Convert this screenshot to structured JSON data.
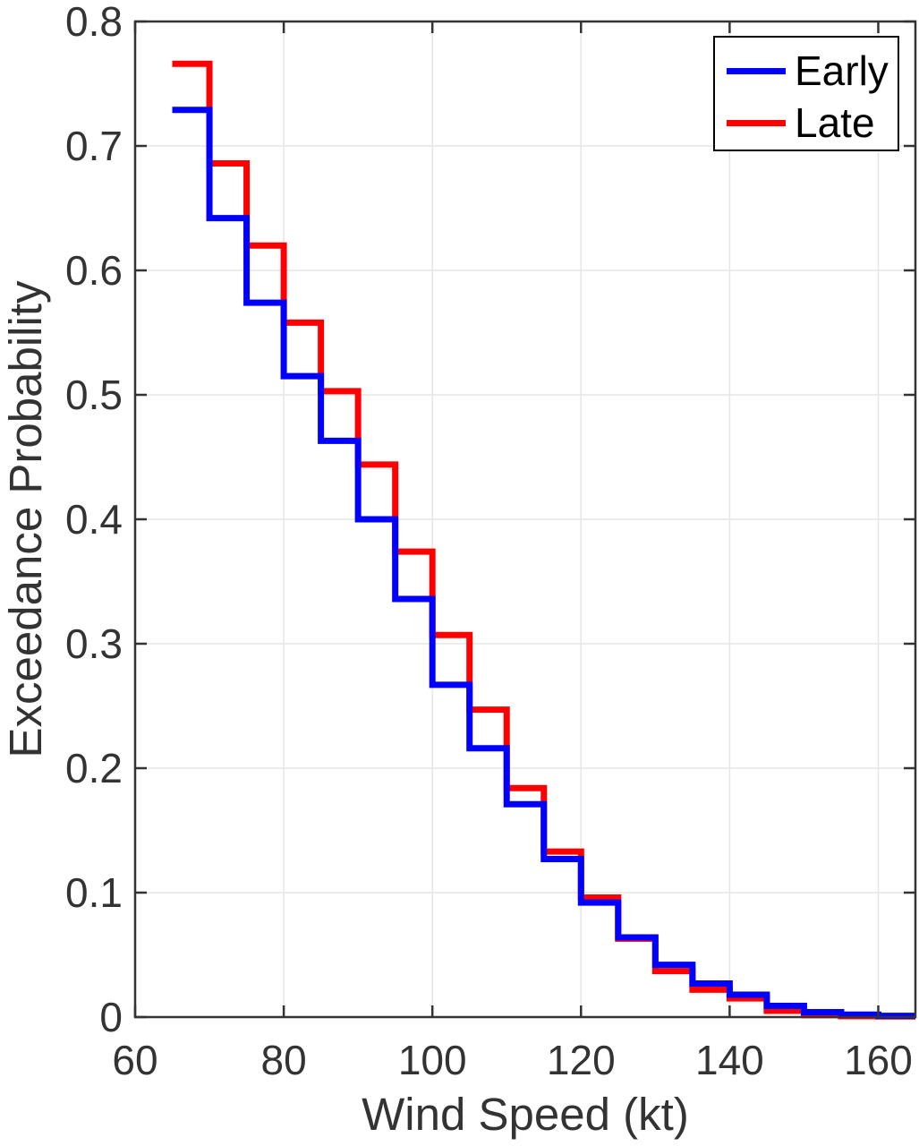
{
  "figure": {
    "background": "#ffffff"
  },
  "chart_data": {
    "type": "line",
    "subtype": "stairs",
    "title": "",
    "xlabel": "Wind Speed (kt)",
    "ylabel": "Exceedance Probability",
    "xlim": [
      60,
      165
    ],
    "ylim": [
      0,
      0.8
    ],
    "grid": true,
    "legend_position": "top-right",
    "xticks": {
      "values": [
        60,
        80,
        100,
        120,
        140,
        160
      ],
      "labels": [
        "60",
        "80",
        "100",
        "120",
        "140",
        "160"
      ]
    },
    "yticks": {
      "values": [
        0,
        0.1,
        0.2,
        0.3,
        0.4,
        0.5,
        0.6,
        0.7,
        0.8
      ],
      "labels": [
        "0",
        "0.1",
        "0.2",
        "0.3",
        "0.4",
        "0.5",
        "0.6",
        "0.7",
        "0.8"
      ]
    },
    "bin_edges": [
      65,
      70,
      75,
      80,
      85,
      90,
      95,
      100,
      105,
      110,
      115,
      120,
      125,
      130,
      135,
      140,
      145,
      150,
      155,
      160,
      165
    ],
    "series": [
      {
        "name": "Early",
        "color": "#0000ff",
        "values": [
          0.729,
          0.642,
          0.574,
          0.515,
          0.463,
          0.4,
          0.336,
          0.267,
          0.216,
          0.171,
          0.127,
          0.092,
          0.064,
          0.042,
          0.027,
          0.018,
          0.009,
          0.004,
          0.002,
          0.001
        ]
      },
      {
        "name": "Late",
        "color": "#ff0000",
        "values": [
          0.766,
          0.686,
          0.62,
          0.558,
          0.503,
          0.444,
          0.374,
          0.307,
          0.247,
          0.184,
          0.133,
          0.096,
          0.063,
          0.037,
          0.022,
          0.015,
          0.005,
          0.0015,
          0.0007,
          0.0005
        ]
      }
    ],
    "colors": {
      "axis": "#333333",
      "grid": "#e6e6e6",
      "tick_label": "#333333",
      "legend_text": "#000000",
      "legend_border": "#000000"
    }
  }
}
